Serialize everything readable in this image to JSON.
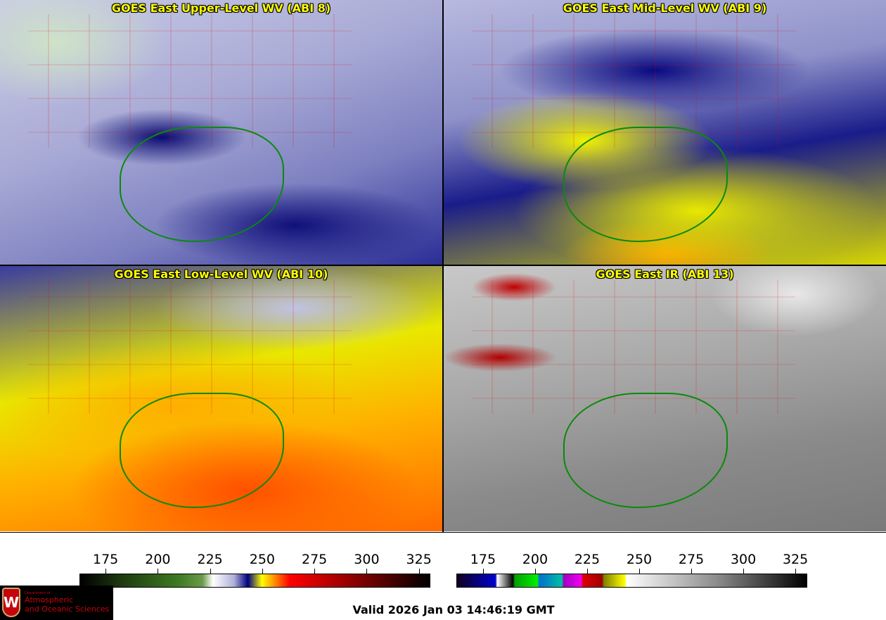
{
  "panels": [
    {
      "title": "GOES East Upper-Level WV (ABI 8)"
    },
    {
      "title": "GOES East Mid-Level WV (ABI 9)"
    },
    {
      "title": "GOES East Low-Level WV (ABI 10)"
    },
    {
      "title": "GOES East IR (ABI 13)"
    }
  ],
  "colorbars": [
    {
      "name": "wv-colorbar",
      "range": [
        162.5,
        330.5
      ],
      "ticks": [
        "175",
        "200",
        "225",
        "250",
        "275",
        "300",
        "325"
      ],
      "gradient": "linear-gradient(90deg,#000 0%,#1f3a10 12%,#3c7a22 28%,#6a9a4a 35%,#fff 38%,#b0b0d8 44%,#000080 48%,#ffff00 52%,#ff8000 56%,#ff0000 60%,#a00000 75%,#000 100%)"
    },
    {
      "name": "ir-colorbar",
      "range": [
        162.2,
        330.7
      ],
      "ticks": [
        "175",
        "200",
        "225",
        "250",
        "275",
        "300",
        "325"
      ],
      "gradient": "linear-gradient(90deg,#100020 0%,#0000d0 11%,#fff 11.5%,#000 16%,#00a000 16.5%,#00f000 23%,#0070d0 23.5%,#00c0a0 30%,#a000c0 30.5%,#f000f0 35.5%,#e00000 36%,#a00000 41.5%,#808000 42%,#ffff00 48%,#fff 48.5%,#888 75%,#000 100%)"
    }
  ],
  "logo": {
    "small": "Department of",
    "line1": "Atmospheric",
    "line2": "and Oceanic Sciences",
    "emblem": "W"
  },
  "valid_time": "Valid 2026 Jan 03 14:46:19 GMT"
}
